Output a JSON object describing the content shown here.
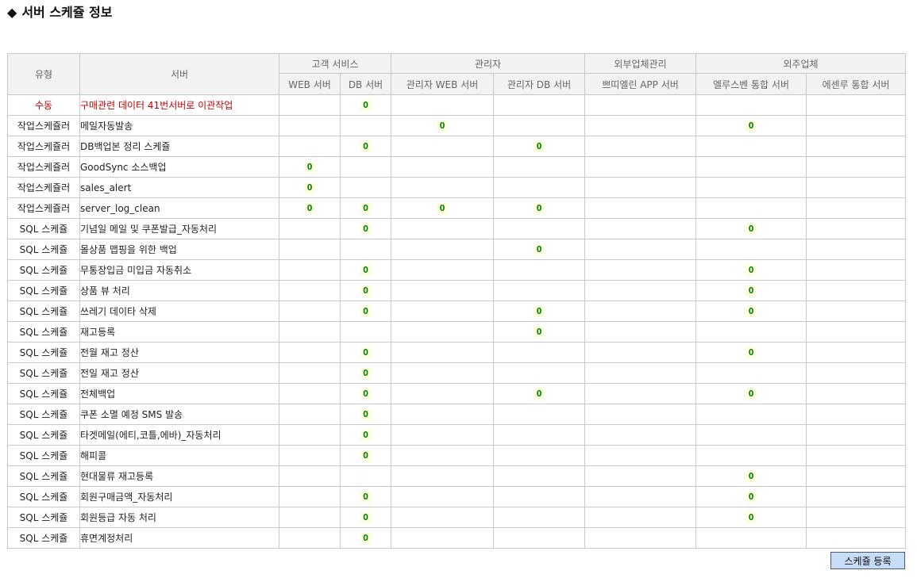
{
  "page": {
    "title_icon": "◆",
    "title": "서버 스케쥴 정보"
  },
  "table": {
    "header_type": "유형",
    "header_server": "서버",
    "groups": [
      "고객 서비스",
      "관리자",
      "외부업체관리",
      "외주업체"
    ],
    "columns": [
      "WEB 서버",
      "DB 서버",
      "관리자 WEB 서버",
      "관리자 DB 서버",
      "쁘띠엘린 APP 서버",
      "엘루스벤 통합 서버",
      "에센루 통합 서버"
    ],
    "mark_symbol": "O",
    "rows": [
      {
        "type": "수동",
        "name": "구매관련 데이터 41번서버로 이관작업",
        "marks": [
          "",
          "O",
          "",
          "",
          "",
          "",
          ""
        ]
      },
      {
        "type": "작업스케쥴러",
        "name": "메일자동발송",
        "marks": [
          "",
          "",
          "O",
          "",
          "",
          "O",
          ""
        ]
      },
      {
        "type": "작업스케쥴러",
        "name": "DB백업본 정리 스케쥴",
        "marks": [
          "",
          "O",
          "",
          "O",
          "",
          "",
          ""
        ]
      },
      {
        "type": "작업스케쥴러",
        "name": "GoodSync 소스백업",
        "marks": [
          "O",
          "",
          "",
          "",
          "",
          "",
          ""
        ]
      },
      {
        "type": "작업스케쥴러",
        "name": "sales_alert",
        "marks": [
          "O",
          "",
          "",
          "",
          "",
          "",
          ""
        ]
      },
      {
        "type": "작업스케쥴러",
        "name": "server_log_clean",
        "marks": [
          "O",
          "O",
          "O",
          "O",
          "",
          "",
          ""
        ]
      },
      {
        "type": "SQL 스케쥴",
        "name": "기념일 메일 및 쿠폰발급_자동처리",
        "marks": [
          "",
          "O",
          "",
          "",
          "",
          "O",
          ""
        ]
      },
      {
        "type": "SQL 스케쥴",
        "name": "몰상품 맵핑을 위한 백업",
        "marks": [
          "",
          "",
          "",
          "O",
          "",
          "",
          ""
        ]
      },
      {
        "type": "SQL 스케쥴",
        "name": "무통장입금 미입금 자동취소",
        "marks": [
          "",
          "O",
          "",
          "",
          "",
          "O",
          ""
        ]
      },
      {
        "type": "SQL 스케쥴",
        "name": "상품 뷰 처리",
        "marks": [
          "",
          "O",
          "",
          "",
          "",
          "O",
          ""
        ]
      },
      {
        "type": "SQL 스케쥴",
        "name": "쓰레기 데이타 삭제",
        "marks": [
          "",
          "O",
          "",
          "O",
          "",
          "O",
          ""
        ]
      },
      {
        "type": "SQL 스케쥴",
        "name": "재고등록",
        "marks": [
          "",
          "",
          "",
          "O",
          "",
          "",
          ""
        ]
      },
      {
        "type": "SQL 스케쥴",
        "name": "전월 재고 정산",
        "marks": [
          "",
          "O",
          "",
          "",
          "",
          "O",
          ""
        ]
      },
      {
        "type": "SQL 스케쥴",
        "name": "전일 재고 정산",
        "marks": [
          "",
          "O",
          "",
          "",
          "",
          "",
          ""
        ]
      },
      {
        "type": "SQL 스케쥴",
        "name": "전체백업",
        "marks": [
          "",
          "O",
          "",
          "O",
          "",
          "O",
          ""
        ]
      },
      {
        "type": "SQL 스케쥴",
        "name": "쿠폰 소멸 예정 SMS 발송",
        "marks": [
          "",
          "O",
          "",
          "",
          "",
          "",
          ""
        ]
      },
      {
        "type": "SQL 스케쥴",
        "name": "타겟메일(에티,코틀,에바)_자동처리",
        "marks": [
          "",
          "O",
          "",
          "",
          "",
          "",
          ""
        ]
      },
      {
        "type": "SQL 스케쥴",
        "name": "해피콜",
        "marks": [
          "",
          "O",
          "",
          "",
          "",
          "",
          ""
        ]
      },
      {
        "type": "SQL 스케쥴",
        "name": "현대물류 재고등록",
        "marks": [
          "",
          "",
          "",
          "",
          "",
          "O",
          ""
        ]
      },
      {
        "type": "SQL 스케쥴",
        "name": "회원구매금액_자동처리",
        "marks": [
          "",
          "O",
          "",
          "",
          "",
          "O",
          ""
        ]
      },
      {
        "type": "SQL 스케쥴",
        "name": "회원등급 자동 처리",
        "marks": [
          "",
          "O",
          "",
          "",
          "",
          "O",
          ""
        ]
      },
      {
        "type": "SQL 스케쥴",
        "name": "휴면계정처리",
        "marks": [
          "",
          "O",
          "",
          "",
          "",
          "",
          ""
        ]
      }
    ]
  },
  "buttons": {
    "register": "스케쥴 등록"
  },
  "colors": {
    "header_bg": "#f2f2f2",
    "border": "#c8c8c8",
    "manual_text": "#c00000",
    "mark_text": "#008000",
    "mark_bg": "#fdfde0",
    "button_bg": "#c6dcf7"
  }
}
